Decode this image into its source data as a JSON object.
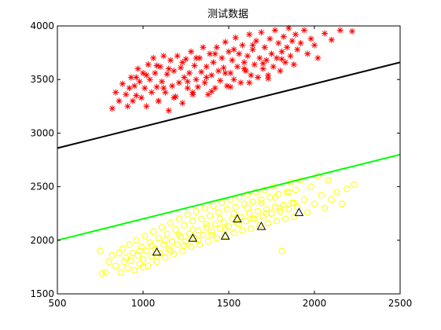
{
  "chart_data": {
    "type": "scatter",
    "title": "测试数据",
    "xlabel": "",
    "ylabel": "",
    "xlim": [
      500,
      2500
    ],
    "ylim": [
      1500,
      4000
    ],
    "grid": false,
    "x_ticks": [
      500,
      1000,
      1500,
      2000,
      2500
    ],
    "y_ticks": [
      1500,
      2000,
      2500,
      3000,
      3500,
      4000
    ],
    "x_tick_labels": [
      "500",
      "1000",
      "1500",
      "2000",
      "2500"
    ],
    "y_tick_labels": [
      "1500",
      "2000",
      "2500",
      "3000",
      "3500",
      "4000"
    ],
    "series": [
      {
        "marker": "asterisk",
        "color": "#ff0000",
        "points": [
          [
            820,
            3230
          ],
          [
            840,
            3380
          ],
          [
            860,
            3300
          ],
          [
            880,
            3460
          ],
          [
            900,
            3360
          ],
          [
            910,
            3250
          ],
          [
            920,
            3420
          ],
          [
            930,
            3520
          ],
          [
            940,
            3300
          ],
          [
            950,
            3440
          ],
          [
            960,
            3350
          ],
          [
            970,
            3600
          ],
          [
            980,
            3480
          ],
          [
            990,
            3330
          ],
          [
            1000,
            3560
          ],
          [
            1010,
            3420
          ],
          [
            1020,
            3250
          ],
          [
            1030,
            3640
          ],
          [
            1040,
            3500
          ],
          [
            1050,
            3380
          ],
          [
            1060,
            3700
          ],
          [
            1070,
            3560
          ],
          [
            1080,
            3430
          ],
          [
            1090,
            3300
          ],
          [
            1100,
            3620
          ],
          [
            1110,
            3480
          ],
          [
            1120,
            3720
          ],
          [
            1130,
            3380
          ],
          [
            1140,
            3550
          ],
          [
            1150,
            3210
          ],
          [
            1160,
            3680
          ],
          [
            1170,
            3440
          ],
          [
            1180,
            3580
          ],
          [
            1190,
            3340
          ],
          [
            1200,
            3720
          ],
          [
            1210,
            3470
          ],
          [
            1220,
            3610
          ],
          [
            1230,
            3280
          ],
          [
            1240,
            3520
          ],
          [
            1250,
            3690
          ],
          [
            1260,
            3420
          ],
          [
            1270,
            3560
          ],
          [
            1280,
            3760
          ],
          [
            1290,
            3380
          ],
          [
            1300,
            3630
          ],
          [
            1310,
            3500
          ],
          [
            1320,
            3430
          ],
          [
            1330,
            3700
          ],
          [
            1340,
            3570
          ],
          [
            1350,
            3800
          ],
          [
            1360,
            3470
          ],
          [
            1370,
            3620
          ],
          [
            1380,
            3360
          ],
          [
            1390,
            3740
          ],
          [
            1400,
            3540
          ],
          [
            1410,
            3660
          ],
          [
            1420,
            3420
          ],
          [
            1430,
            3800
          ],
          [
            1440,
            3580
          ],
          [
            1450,
            3490
          ],
          [
            1460,
            3700
          ],
          [
            1470,
            3610
          ],
          [
            1480,
            3850
          ],
          [
            1490,
            3440
          ],
          [
            1500,
            3760
          ],
          [
            1510,
            3560
          ],
          [
            1520,
            3680
          ],
          [
            1530,
            3500
          ],
          [
            1540,
            3890
          ],
          [
            1550,
            3620
          ],
          [
            1560,
            3740
          ],
          [
            1570,
            3470
          ],
          [
            1580,
            3820
          ],
          [
            1590,
            3660
          ],
          [
            1600,
            3580
          ],
          [
            1610,
            3720
          ],
          [
            1620,
            3920
          ],
          [
            1630,
            3540
          ],
          [
            1640,
            3780
          ],
          [
            1650,
            3640
          ],
          [
            1660,
            3860
          ],
          [
            1670,
            3520
          ],
          [
            1680,
            3700
          ],
          [
            1690,
            3940
          ],
          [
            1700,
            3600
          ],
          [
            1710,
            3800
          ],
          [
            1720,
            3680
          ],
          [
            1730,
            3540
          ],
          [
            1740,
            3880
          ],
          [
            1750,
            3740
          ],
          [
            1760,
            3620
          ],
          [
            1770,
            3960
          ],
          [
            1780,
            3700
          ],
          [
            1790,
            3840
          ],
          [
            1800,
            3580
          ],
          [
            1810,
            3760
          ],
          [
            1820,
            3900
          ],
          [
            1830,
            3660
          ],
          [
            1840,
            3800
          ],
          [
            1850,
            3980
          ],
          [
            1860,
            3720
          ],
          [
            1870,
            3860
          ],
          [
            1880,
            3640
          ],
          [
            1890,
            3920
          ],
          [
            1900,
            3780
          ],
          [
            1920,
            3840
          ],
          [
            1940,
            3960
          ],
          [
            1960,
            3740
          ],
          [
            1980,
            3880
          ],
          [
            2000,
            3820
          ],
          [
            2020,
            3700
          ],
          [
            2060,
            3930
          ],
          [
            2100,
            3870
          ],
          [
            2150,
            3960
          ],
          [
            2220,
            3950
          ],
          [
            1080,
            3630
          ],
          [
            1150,
            3600
          ],
          [
            1230,
            3660
          ],
          [
            1310,
            3700
          ],
          [
            1420,
            3740
          ],
          [
            1530,
            3780
          ],
          [
            1640,
            3820
          ],
          [
            960,
            3520
          ],
          [
            1020,
            3540
          ],
          [
            1120,
            3420
          ],
          [
            1260,
            3480
          ],
          [
            1370,
            3520
          ],
          [
            1480,
            3560
          ],
          [
            1590,
            3600
          ],
          [
            1700,
            3650
          ],
          [
            1810,
            3690
          ],
          [
            1090,
            3300
          ],
          [
            1180,
            3330
          ],
          [
            1290,
            3360
          ],
          [
            1400,
            3390
          ],
          [
            1510,
            3430
          ],
          [
            1620,
            3470
          ],
          [
            1730,
            3510
          ]
        ]
      },
      {
        "marker": "circle",
        "color": "#ffff00",
        "points": [
          [
            750,
            1900
          ],
          [
            760,
            1690
          ],
          [
            780,
            1700
          ],
          [
            800,
            1800
          ],
          [
            820,
            1860
          ],
          [
            840,
            1760
          ],
          [
            860,
            1880
          ],
          [
            870,
            1700
          ],
          [
            880,
            1920
          ],
          [
            890,
            1800
          ],
          [
            900,
            1840
          ],
          [
            910,
            1740
          ],
          [
            920,
            1960
          ],
          [
            930,
            1810
          ],
          [
            940,
            1880
          ],
          [
            950,
            1720
          ],
          [
            960,
            2000
          ],
          [
            970,
            1860
          ],
          [
            980,
            1780
          ],
          [
            990,
            1940
          ],
          [
            1000,
            1820
          ],
          [
            1010,
            2040
          ],
          [
            1020,
            1900
          ],
          [
            1030,
            1760
          ],
          [
            1040,
            1980
          ],
          [
            1050,
            1850
          ],
          [
            1060,
            2080
          ],
          [
            1070,
            1920
          ],
          [
            1080,
            1800
          ],
          [
            1090,
            2020
          ],
          [
            1100,
            1880
          ],
          [
            1110,
            2120
          ],
          [
            1120,
            1960
          ],
          [
            1130,
            1840
          ],
          [
            1140,
            2060
          ],
          [
            1150,
            1920
          ],
          [
            1160,
            2160
          ],
          [
            1170,
            1990
          ],
          [
            1180,
            1870
          ],
          [
            1190,
            2100
          ],
          [
            1200,
            1960
          ],
          [
            1210,
            2200
          ],
          [
            1220,
            2030
          ],
          [
            1230,
            1900
          ],
          [
            1240,
            2140
          ],
          [
            1250,
            1990
          ],
          [
            1260,
            2240
          ],
          [
            1270,
            2060
          ],
          [
            1280,
            1940
          ],
          [
            1290,
            2180
          ],
          [
            1300,
            2020
          ],
          [
            1310,
            2270
          ],
          [
            1320,
            2090
          ],
          [
            1330,
            1960
          ],
          [
            1340,
            2200
          ],
          [
            1350,
            2050
          ],
          [
            1360,
            2300
          ],
          [
            1370,
            2120
          ],
          [
            1380,
            1990
          ],
          [
            1390,
            2230
          ],
          [
            1400,
            2080
          ],
          [
            1410,
            2320
          ],
          [
            1420,
            2150
          ],
          [
            1430,
            2020
          ],
          [
            1440,
            2260
          ],
          [
            1450,
            2110
          ],
          [
            1460,
            2350
          ],
          [
            1470,
            2170
          ],
          [
            1480,
            2040
          ],
          [
            1490,
            2290
          ],
          [
            1500,
            2130
          ],
          [
            1510,
            2380
          ],
          [
            1520,
            2200
          ],
          [
            1530,
            2070
          ],
          [
            1540,
            2310
          ],
          [
            1550,
            2160
          ],
          [
            1560,
            2400
          ],
          [
            1570,
            2220
          ],
          [
            1580,
            2090
          ],
          [
            1590,
            2340
          ],
          [
            1600,
            2180
          ],
          [
            1610,
            2430
          ],
          [
            1620,
            2250
          ],
          [
            1630,
            2110
          ],
          [
            1640,
            2360
          ],
          [
            1650,
            2200
          ],
          [
            1660,
            2450
          ],
          [
            1670,
            2270
          ],
          [
            1680,
            2140
          ],
          [
            1690,
            2380
          ],
          [
            1700,
            2220
          ],
          [
            1710,
            2470
          ],
          [
            1720,
            2290
          ],
          [
            1730,
            2160
          ],
          [
            1740,
            2400
          ],
          [
            1750,
            2250
          ],
          [
            1760,
            2500
          ],
          [
            1770,
            2310
          ],
          [
            1780,
            2180
          ],
          [
            1790,
            2430
          ],
          [
            1800,
            2270
          ],
          [
            1810,
            1900
          ],
          [
            1820,
            2330
          ],
          [
            1830,
            2200
          ],
          [
            1840,
            2450
          ],
          [
            1850,
            2290
          ],
          [
            1860,
            2540
          ],
          [
            1870,
            2350
          ],
          [
            1880,
            2220
          ],
          [
            1890,
            2470
          ],
          [
            1900,
            2310
          ],
          [
            1920,
            2560
          ],
          [
            1940,
            2380
          ],
          [
            1960,
            2260
          ],
          [
            1980,
            2500
          ],
          [
            2000,
            2340
          ],
          [
            2020,
            2600
          ],
          [
            2040,
            2420
          ],
          [
            2060,
            2300
          ],
          [
            2080,
            2560
          ],
          [
            2100,
            2380
          ],
          [
            2130,
            2450
          ],
          [
            2160,
            2340
          ],
          [
            2190,
            2480
          ],
          [
            2230,
            2520
          ],
          [
            980,
            1900
          ],
          [
            1050,
            1950
          ],
          [
            1130,
            2000
          ],
          [
            1210,
            2050
          ],
          [
            1290,
            2100
          ],
          [
            1370,
            2150
          ],
          [
            1450,
            2200
          ],
          [
            1530,
            2250
          ],
          [
            1610,
            2300
          ],
          [
            1690,
            2350
          ],
          [
            1770,
            2400
          ],
          [
            1850,
            2450
          ],
          [
            1000,
            1750
          ],
          [
            1080,
            1850
          ],
          [
            1160,
            1900
          ],
          [
            1240,
            1950
          ],
          [
            1320,
            2000
          ],
          [
            1400,
            2050
          ],
          [
            1480,
            2100
          ],
          [
            1560,
            2150
          ],
          [
            1640,
            2200
          ],
          [
            1720,
            2250
          ],
          [
            1800,
            2300
          ],
          [
            1880,
            2350
          ]
        ]
      },
      {
        "marker": "triangle",
        "color": "#000000",
        "points": [
          [
            1080,
            1890
          ],
          [
            1290,
            2020
          ],
          [
            1480,
            2040
          ],
          [
            1550,
            2200
          ],
          [
            1690,
            2130
          ],
          [
            1910,
            2260
          ]
        ]
      }
    ],
    "lines": [
      {
        "color": "#000000",
        "points": [
          [
            500,
            2860
          ],
          [
            2500,
            3660
          ]
        ]
      },
      {
        "color": "#00ff00",
        "points": [
          [
            500,
            2000
          ],
          [
            2500,
            2800
          ]
        ]
      }
    ]
  }
}
